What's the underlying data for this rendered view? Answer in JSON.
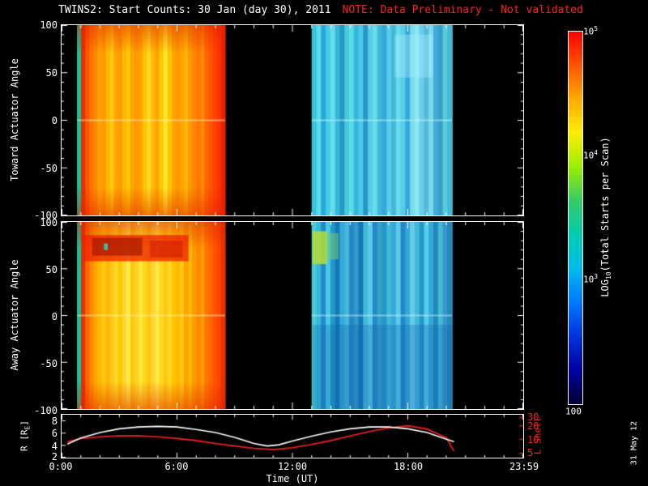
{
  "title": {
    "main": "TWINS2: Start Counts: 30 Jan (day 30), 2011",
    "note": "NOTE: Data Preliminary - Not validated"
  },
  "colors": {
    "background": "#000000",
    "foreground": "#ffffff",
    "note_red": "#ff2020"
  },
  "xaxis": {
    "label": "Time (UT)",
    "tick_labels": [
      "0:00",
      "6:00",
      "12:00",
      "18:00",
      "23:59"
    ]
  },
  "panel_toward": {
    "ylabel": "Toward Actuator Angle",
    "tick_labels": [
      "100",
      "50",
      "0",
      "-50",
      "-100"
    ]
  },
  "panel_away": {
    "ylabel": "Away Actuator Angle",
    "tick_labels": [
      "100",
      "50",
      "0",
      "-50",
      "-100"
    ]
  },
  "panel_rl": {
    "ylabel_pre": "R [R",
    "ylabel_sub": "E",
    "ylabel_post": "]",
    "left_tick_labels": [
      "8",
      "6",
      "4",
      "2"
    ],
    "right_label": "L Shell",
    "right_tick_labels": [
      "30",
      "20",
      "10",
      "5"
    ]
  },
  "colorbar": {
    "label_pre": "LOG",
    "label_sub": "10",
    "label_post": "(Total Starts per Scan)",
    "ticks": [
      {
        "base": "10",
        "sup": "5"
      },
      {
        "base": "10",
        "sup": "4"
      },
      {
        "base": "10",
        "sup": "3"
      },
      {
        "base": "100",
        "sup": ""
      }
    ],
    "stops": [
      "#ff0000",
      "#ff5500",
      "#ffaa00",
      "#ffee00",
      "#99ee00",
      "#33cc66",
      "#00ccb0",
      "#00bbee",
      "#0077ff",
      "#0033dd",
      "#0000a0",
      "#000033"
    ]
  },
  "date_stamp": "31 May 12",
  "chart_data": {
    "type": "heatmap",
    "title": "TWINS2: Start Counts: 30 Jan (day 30), 2011",
    "time_range": [
      0,
      24
    ],
    "angle_range": [
      -100,
      100
    ],
    "colorbar_log10_range": [
      2,
      5
    ],
    "panels": [
      {
        "name": "toward",
        "segments": [
          {
            "t0": 0.8,
            "t1": 8.5,
            "approx_log10_range": [
              3.9,
              4.8
            ],
            "edge_tint": "#dd2200",
            "stripes": [
              "#18c09a",
              "#e83000",
              "#ff5500",
              "#ff7700",
              "#ff8800",
              "#ffa500",
              "#ff9900",
              "#ffb800",
              "#ffc710",
              "#ffa500",
              "#ff9900",
              "#ffb800",
              "#ffc700",
              "#ffa500",
              "#ff9900",
              "#ffa500",
              "#ffc700",
              "#ffd722",
              "#ffb800",
              "#ffa500",
              "#ffc700",
              "#ffe833",
              "#ffc700",
              "#ffa500",
              "#ff9900",
              "#ffa500",
              "#ffb800",
              "#ff9900",
              "#ff8800",
              "#ff7700",
              "#ff8800",
              "#ff6600",
              "#ff5500",
              "#ff4400",
              "#ff3300",
              "#e82200"
            ]
          },
          {
            "t0": 13.0,
            "t1": 20.3,
            "approx_log10_range": [
              3.0,
              3.6
            ],
            "stripes": [
              "#35c8dc",
              "#58dcea",
              "#28a8d8",
              "#46cce8",
              "#68dcec",
              "#36b8d8",
              "#2496c8",
              "#46ccd8",
              "#58dcea",
              "#36b8d8",
              "#46cce8",
              "#2496c8",
              "#58cce8",
              "#68dcec",
              "#44b8d8",
              "#34a8d8",
              "#58cce8",
              "#44b8d8",
              "#68dcec",
              "#58cce8",
              "#34a8d8",
              "#78dcec",
              "#8ce8f0",
              "#68ccec",
              "#58b8d8",
              "#78dcec",
              "#44a8d8",
              "#34a0c8",
              "#58ccd8",
              "#44b8d8"
            ]
          }
        ],
        "features": [
          {
            "type": "hline",
            "angle": 0,
            "alpha": 0.55,
            "colors": [
              "#ffe9b0",
              "#c8f2f8"
            ]
          },
          {
            "type": "band",
            "t0": 17.3,
            "t1": 19.3,
            "a0": 45,
            "a1": 90,
            "color": "#aaeeff",
            "alpha": 0.4
          }
        ]
      },
      {
        "name": "away",
        "segments": [
          {
            "t0": 0.8,
            "t1": 8.5,
            "approx_log10_range": [
              4.0,
              4.9
            ],
            "edge_tint": "#dd2200",
            "stripes": [
              "#18c09a",
              "#e83000",
              "#ff6600",
              "#ff8800",
              "#ffa500",
              "#ffb800",
              "#ffc710",
              "#ffb800",
              "#ffc722",
              "#ffd722",
              "#ffc700",
              "#ffd733",
              "#ffe844",
              "#ffc710",
              "#ffd722",
              "#ffe833",
              "#ffd722",
              "#ffc710",
              "#ffd733",
              "#ffe844",
              "#ffd722",
              "#ffc710",
              "#ffd722",
              "#ffc700",
              "#ffb800",
              "#ffc710",
              "#ffa500",
              "#ffb800",
              "#ff9900",
              "#ff8800",
              "#ff9900",
              "#ff7700",
              "#ff6600",
              "#ff5500",
              "#ff4400",
              "#e83300"
            ]
          },
          {
            "t0": 13.0,
            "t1": 20.3,
            "approx_log10_range": [
              2.8,
              3.5
            ],
            "stripes": [
              "#46ccd8",
              "#36b8d8",
              "#2488c8",
              "#46cce8",
              "#2496c8",
              "#1478b8",
              "#34a8d8",
              "#44b8d8",
              "#2488c8",
              "#3498c8",
              "#1478b8",
              "#44b8d8",
              "#58cce8",
              "#2488c8",
              "#34a0c8",
              "#2496c8",
              "#44b8d8",
              "#34a8d8",
              "#58cce8",
              "#2488c8",
              "#34a8d8",
              "#68ccec",
              "#44b8d8",
              "#2496c8",
              "#58cce8",
              "#34a8d8",
              "#2288b8",
              "#44b8d8",
              "#3498c8",
              "#2288b8"
            ]
          }
        ],
        "features": [
          {
            "type": "hline",
            "angle": 0,
            "alpha": 0.5,
            "colors": [
              "#fff3b0",
              "#c8f2f8"
            ]
          },
          {
            "type": "band",
            "t0": 1.1,
            "t1": 6.6,
            "a0": 58,
            "a1": 86,
            "color": "#ee2200",
            "alpha": 0.75
          },
          {
            "type": "band",
            "t0": 1.6,
            "t1": 4.2,
            "a0": 64,
            "a1": 83,
            "color": "#991100",
            "alpha": 0.6
          },
          {
            "type": "band",
            "t0": 4.6,
            "t1": 6.3,
            "a0": 62,
            "a1": 80,
            "color": "#cc1100",
            "alpha": 0.5
          },
          {
            "type": "band",
            "t0": 2.2,
            "t1": 2.4,
            "a0": 70,
            "a1": 77,
            "color": "#33ccbb",
            "alpha": 0.9
          },
          {
            "type": "band",
            "t0": 13.05,
            "t1": 13.8,
            "a0": 55,
            "a1": 90,
            "color": "#b8dd33",
            "alpha": 0.85
          },
          {
            "type": "band",
            "t0": 13.8,
            "t1": 14.4,
            "a0": 60,
            "a1": 88,
            "color": "#7ecc66",
            "alpha": 0.5
          },
          {
            "type": "band",
            "t0": 13.05,
            "t1": 20.3,
            "a0": -100,
            "a1": -10,
            "color": "#0f5fae",
            "alpha": 0.28
          }
        ]
      }
    ],
    "r_axis_range": [
      2,
      9
    ],
    "l_axis_range": [
      4,
      35
    ],
    "r_series": {
      "name": "R [RE]",
      "color": "#ffffff",
      "x": [
        0.3,
        1,
        2,
        3,
        4,
        5,
        6,
        7,
        8,
        9,
        10,
        10.7,
        11.3,
        12,
        13,
        14,
        15,
        16,
        17,
        18,
        19,
        20,
        20.4
      ],
      "y": [
        4.2,
        5.2,
        6.1,
        6.7,
        7.0,
        7.1,
        7.0,
        6.6,
        6.1,
        5.3,
        4.3,
        3.9,
        4.1,
        4.7,
        5.5,
        6.2,
        6.7,
        7.0,
        7.0,
        6.7,
        6.1,
        5.0,
        4.6
      ]
    },
    "l_series": {
      "name": "L Shell",
      "color": "#ff2020",
      "x": [
        0.3,
        1,
        2,
        3,
        4,
        5,
        6,
        7,
        8,
        9,
        10,
        11,
        12,
        13,
        14,
        15,
        16,
        17,
        18,
        19,
        20,
        20.4
      ],
      "y": [
        9,
        10.5,
        11.5,
        12,
        12,
        11.5,
        10.5,
        9.5,
        8.2,
        7.2,
        6.4,
        6.0,
        6.6,
        7.8,
        9.5,
        12,
        15,
        18,
        20,
        17,
        11,
        5.5
      ]
    }
  }
}
